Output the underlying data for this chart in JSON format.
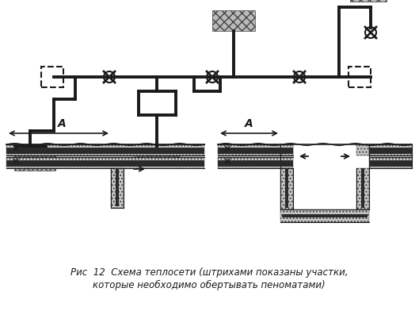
{
  "title_line1": "Рис  12  Схема теплосети (штрихами показаны участки,",
  "title_line2": "которые необходимо обертывать пеноматами)",
  "bg_color": "#ffffff",
  "line_color": "#1a1a1a",
  "fig_width": 5.29,
  "fig_height": 3.92,
  "dpi": 100,
  "caption_fontsize": 8.5,
  "caption_style": "italic"
}
